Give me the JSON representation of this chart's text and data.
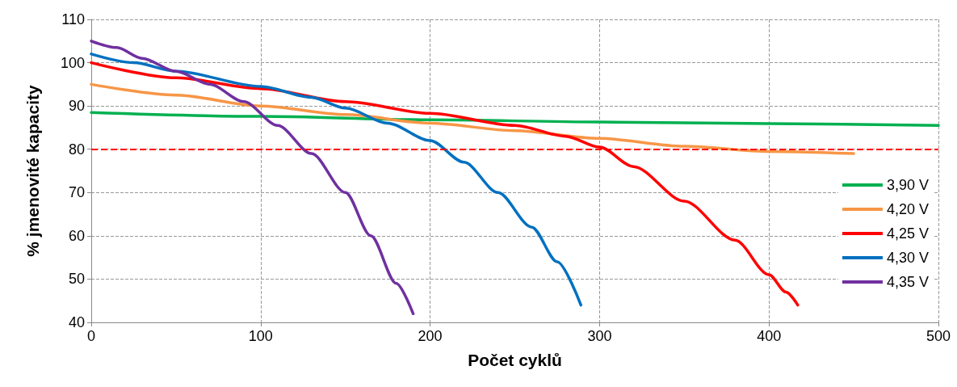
{
  "chart_data": {
    "type": "line",
    "xlabel": "Počet cyklů",
    "ylabel": "% jmenovité kapacity",
    "xlim": [
      0,
      500
    ],
    "xticks": [
      0,
      100,
      200,
      300,
      400,
      500
    ],
    "ylim": [
      40,
      110
    ],
    "yticks": [
      40,
      50,
      60,
      70,
      80,
      90,
      100,
      110
    ],
    "grid": true,
    "legend": "right",
    "marker": "none",
    "line_style": "solid",
    "ref_lines": [
      {
        "axis": "y",
        "value": 80,
        "color": "#ff0000",
        "line_style": "dashed"
      }
    ],
    "series": [
      {
        "name": "3,90 V",
        "color": "#00b050",
        "x": [
          0,
          100,
          200,
          300,
          400,
          500
        ],
        "values": [
          88.5,
          87.6,
          86.8,
          86.3,
          85.9,
          85.5
        ]
      },
      {
        "name": "4,20 V",
        "color": "#f79646",
        "x": [
          0,
          50,
          100,
          150,
          200,
          250,
          300,
          350,
          400,
          450
        ],
        "values": [
          95,
          92.5,
          90,
          88,
          86,
          84.3,
          82.5,
          80.7,
          79.5,
          79
        ]
      },
      {
        "name": "4,25 V",
        "color": "#ff0000",
        "x": [
          0,
          50,
          100,
          150,
          200,
          250,
          280,
          300,
          320,
          350,
          380,
          400,
          410,
          417
        ],
        "values": [
          100,
          96.5,
          94,
          91,
          88.3,
          85.5,
          83,
          80.5,
          76,
          68,
          59,
          51,
          47,
          44
        ]
      },
      {
        "name": "4,30 V",
        "color": "#0070c0",
        "x": [
          0,
          25,
          50,
          100,
          130,
          150,
          175,
          200,
          220,
          240,
          260,
          275,
          289
        ],
        "values": [
          102,
          100,
          98,
          94.5,
          92,
          89.5,
          86,
          82,
          77,
          70,
          62,
          54,
          44
        ]
      },
      {
        "name": "4,35 V",
        "color": "#7030a0",
        "x": [
          0,
          15,
          30,
          50,
          70,
          90,
          110,
          130,
          150,
          165,
          180,
          190
        ],
        "values": [
          105,
          103.5,
          101,
          98,
          95,
          91,
          85.5,
          79,
          70,
          60,
          49,
          42
        ]
      }
    ]
  }
}
